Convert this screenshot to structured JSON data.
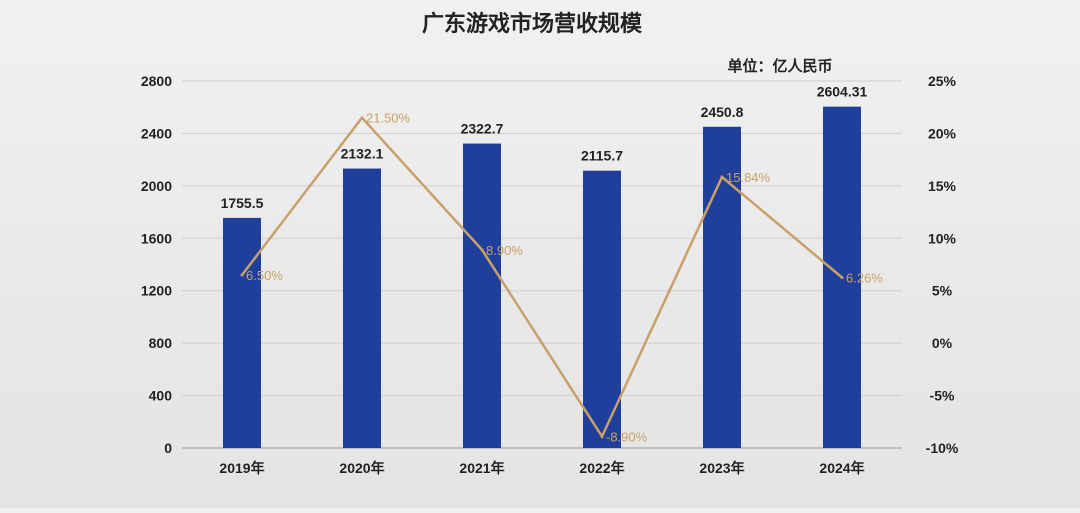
{
  "chart_data": {
    "type": "bar",
    "title": "广东游戏市场营收规模",
    "unit_label": "单位：亿人民币",
    "categories": [
      "2019年",
      "2020年",
      "2021年",
      "2022年",
      "2023年",
      "2024年"
    ],
    "series": [
      {
        "type": "bar",
        "axis": "left",
        "values": [
          1755.5,
          2132.1,
          2322.7,
          2115.7,
          2450.8,
          2604.31
        ],
        "labels": [
          "1755.5",
          "2132.1",
          "2322.7",
          "2115.7",
          "2450.8",
          "2604.31"
        ],
        "color": "#1f3f9a"
      },
      {
        "type": "line",
        "axis": "right",
        "values": [
          6.5,
          21.5,
          8.9,
          -8.9,
          15.84,
          6.26
        ],
        "labels": [
          "6.50%",
          "21.50%",
          "8.90%",
          "-8.90%",
          "15.84%",
          "6.26%"
        ],
        "color": "#c9a06a"
      }
    ],
    "y_left": {
      "ylim": [
        0,
        2800
      ],
      "ticks": [
        "0",
        "400",
        "800",
        "1200",
        "1600",
        "2000",
        "2400",
        "2800"
      ]
    },
    "y_right": {
      "ylim": [
        -10,
        25
      ],
      "ticks": [
        "-10%",
        "-5%",
        "0%",
        "5%",
        "10%",
        "15%",
        "20%",
        "25%"
      ]
    },
    "grid": true,
    "legend": "none"
  }
}
